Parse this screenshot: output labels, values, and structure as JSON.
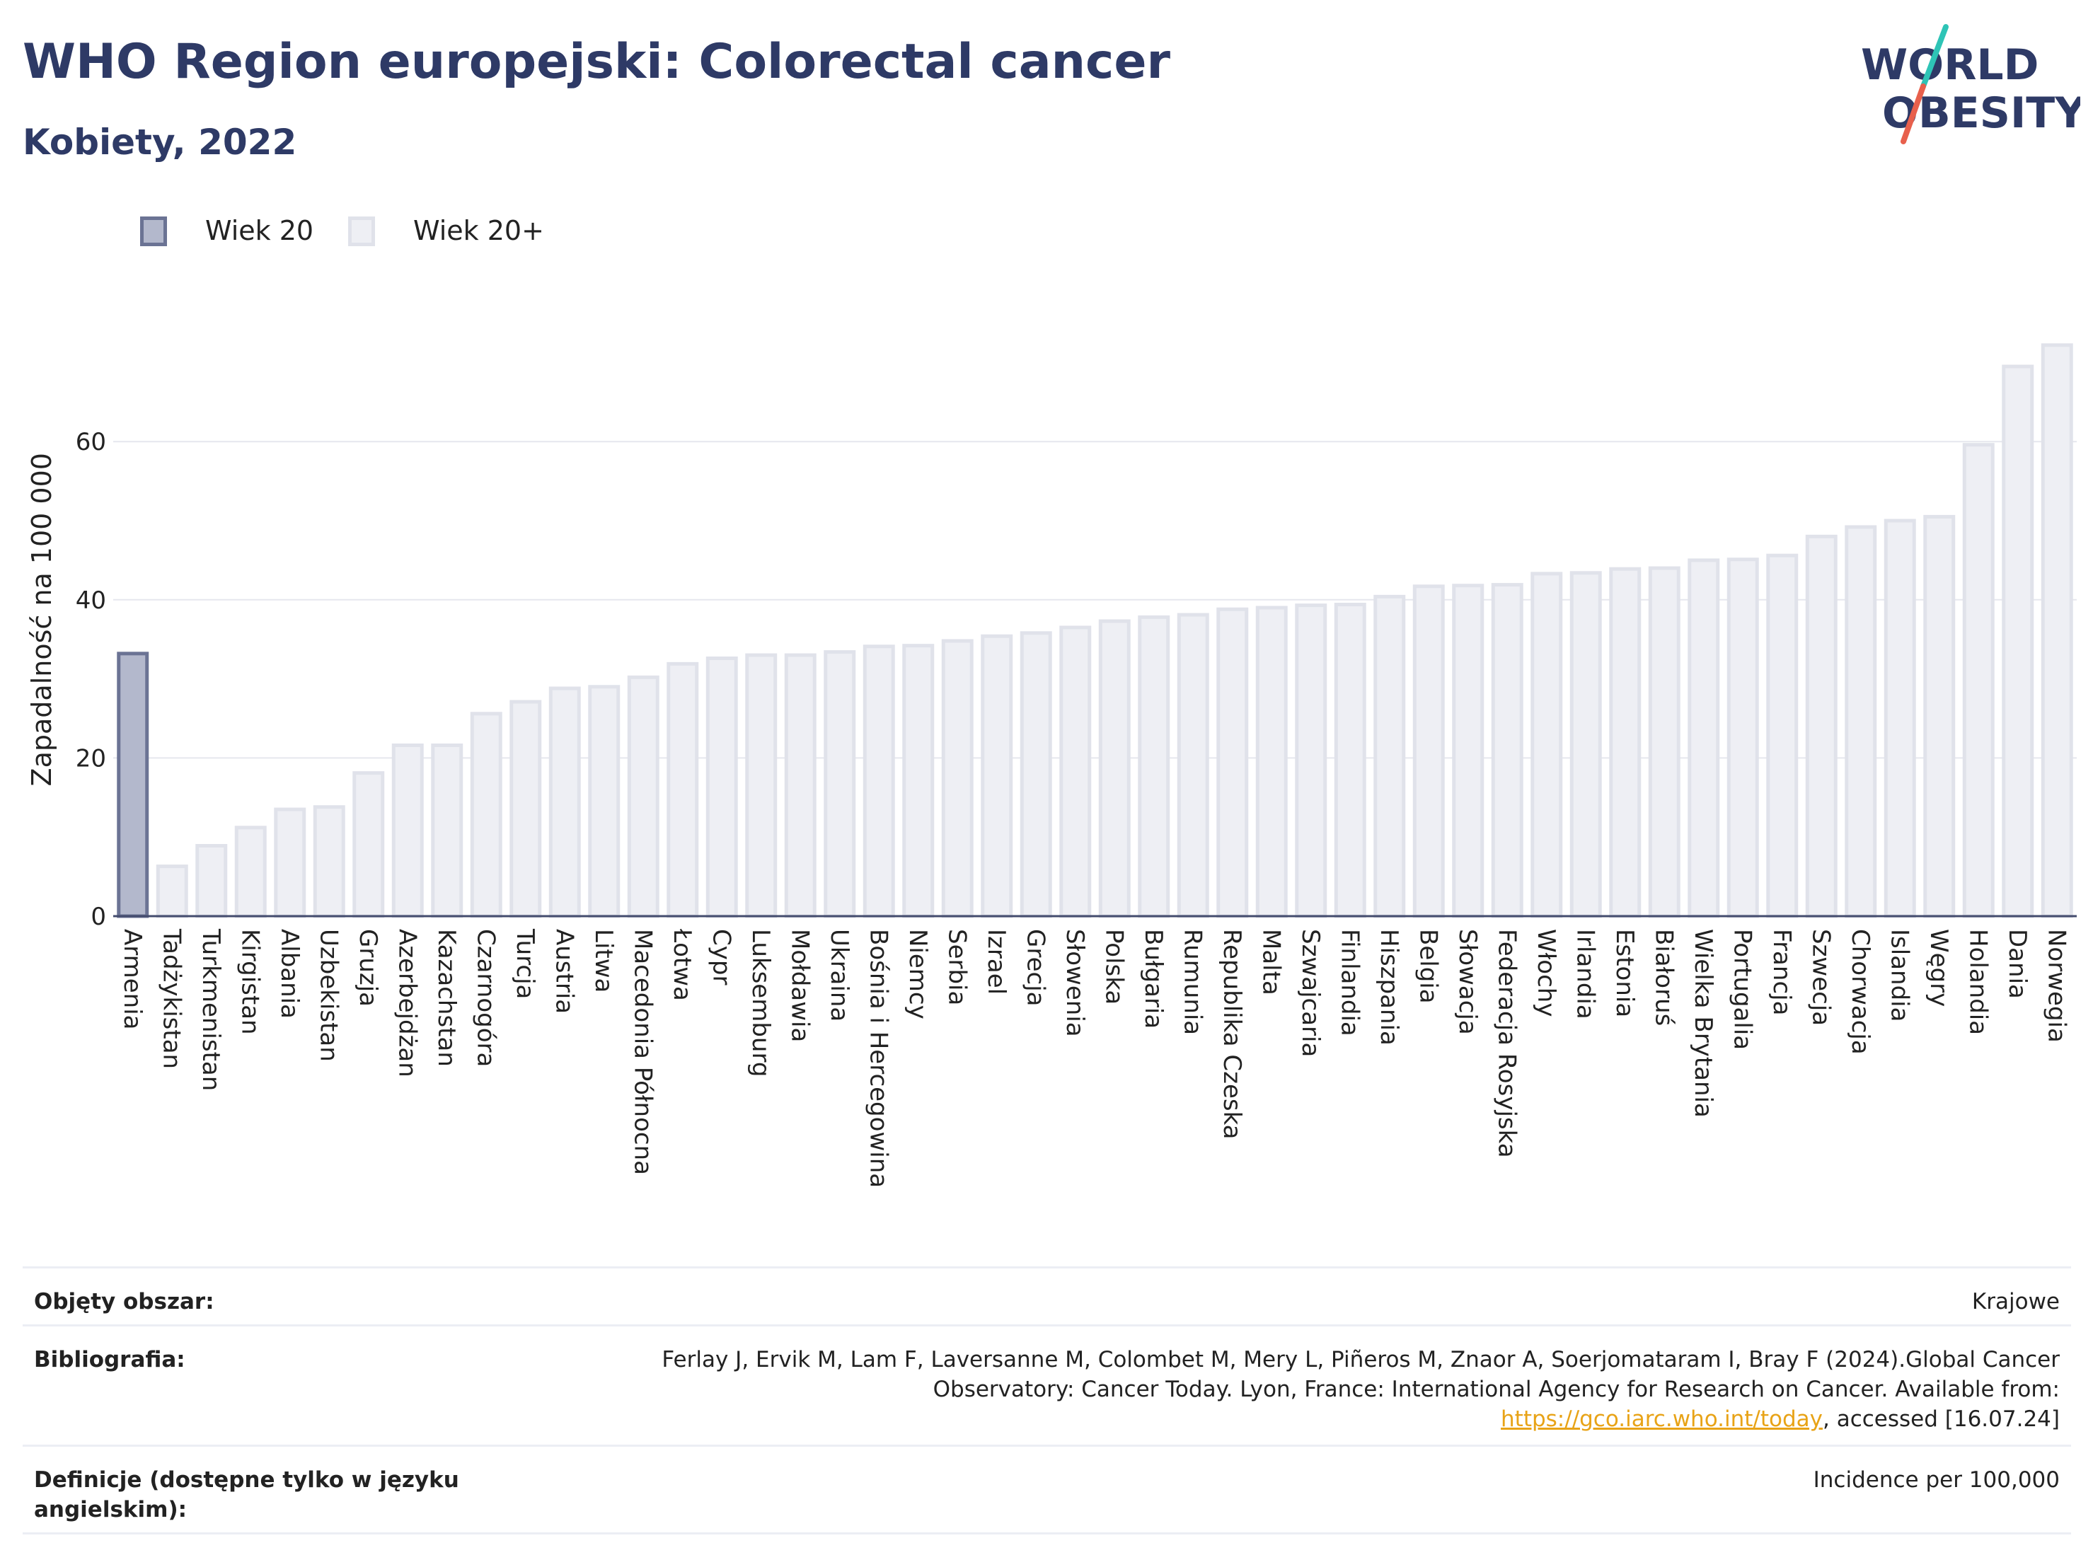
{
  "header": {
    "title": "WHO Region europejski: Colorectal cancer",
    "subtitle": "Kobiety, 2022"
  },
  "logo": {
    "line1": "WORLD",
    "line2": "OBESITY",
    "accent_colors": [
      "#2ec4b6",
      "#e8604c"
    ]
  },
  "legend": {
    "items": [
      {
        "label": "Wiek 20",
        "color": "#b3b8cc",
        "border": "#6b7394"
      },
      {
        "label": "Wiek 20+",
        "color": "#eeeff4",
        "border": "#e0e2ea"
      }
    ]
  },
  "chart_data": {
    "type": "bar",
    "ylabel": "Zapadalność na 100 000",
    "xlabel": "",
    "ylim": [
      0,
      75
    ],
    "yticks": [
      0,
      20,
      40,
      60
    ],
    "grid": true,
    "categories": [
      "Armenia",
      "Tadżykistan",
      "Turkmenistan",
      "Kirgistan",
      "Albania",
      "Uzbekistan",
      "Gruzja",
      "Azerbejdżan",
      "Kazachstan",
      "Czarnogóra",
      "Turcja",
      "Austria",
      "Litwa",
      "Macedonia Północna",
      "Łotwa",
      "Cypr",
      "Luksemburg",
      "Mołdawia",
      "Ukraina",
      "Bośnia i Hercegowina",
      "Niemcy",
      "Serbia",
      "Izrael",
      "Grecja",
      "Słowenia",
      "Polska",
      "Bułgaria",
      "Rumunia",
      "Republika Czeska",
      "Malta",
      "Szwajcaria",
      "Finlandia",
      "Hiszpania",
      "Belgia",
      "Słowacja",
      "Federacja Rosyjska",
      "Włochy",
      "Irlandia",
      "Estonia",
      "Białoruś",
      "Wielka Brytania",
      "Portugalia",
      "Francja",
      "Szwecja",
      "Chorwacja",
      "Islandia",
      "Węgry",
      "Holandia",
      "Dania",
      "Norwegia"
    ],
    "values": [
      33.2,
      6.3,
      8.9,
      11.2,
      13.5,
      13.8,
      18.1,
      21.6,
      21.6,
      25.6,
      27.1,
      28.8,
      29.0,
      30.2,
      31.9,
      32.6,
      33.0,
      33.0,
      33.4,
      34.1,
      34.2,
      34.8,
      35.4,
      35.8,
      36.5,
      37.3,
      37.8,
      38.1,
      38.8,
      39.0,
      39.3,
      39.4,
      40.4,
      41.7,
      41.8,
      41.9,
      43.3,
      43.4,
      43.9,
      44.0,
      45.0,
      45.1,
      45.6,
      48.0,
      49.2,
      50.0,
      50.5,
      59.6,
      69.5,
      72.2
    ],
    "series": [
      {
        "name": "Wiek 20",
        "indices": [
          0
        ]
      },
      {
        "name": "Wiek 20+",
        "indices": [
          1,
          2,
          3,
          4,
          5,
          6,
          7,
          8,
          9,
          10,
          11,
          12,
          13,
          14,
          15,
          16,
          17,
          18,
          19,
          20,
          21,
          22,
          23,
          24,
          25,
          26,
          27,
          28,
          29,
          30,
          31,
          32,
          33,
          34,
          35,
          36,
          37,
          38,
          39,
          40,
          41,
          42,
          43,
          44,
          45,
          46,
          47,
          48,
          49
        ]
      }
    ]
  },
  "info": {
    "rows": [
      {
        "label": "Objęty obszar:",
        "value": "Krajowe"
      },
      {
        "label": "Bibliografia:",
        "value_pre": "Ferlay J, Ervik M, Lam F, Laversanne M, Colombet M, Mery L, Piñeros M, Znaor A, Soerjomataram I, Bray F (2024).Global Cancer Observatory: Cancer Today. Lyon, France: International Agency for Research on Cancer. Available from: ",
        "link": "https://gco.iarc.who.int/today",
        "value_post": ", accessed [16.07.24]"
      },
      {
        "label": "Definicje (dostępne tylko w języku angielskim):",
        "value": "Incidence per 100,000"
      }
    ]
  }
}
